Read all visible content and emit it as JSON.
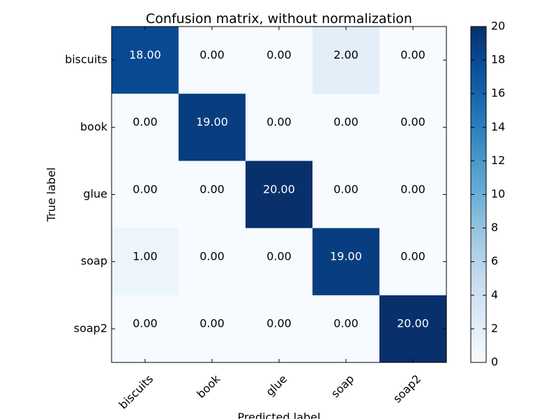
{
  "chart_data": {
    "type": "heatmap",
    "title": "Confusion matrix, without normalization",
    "xlabel": "Predicted label",
    "ylabel": "True label",
    "x_categories": [
      "biscuits",
      "book",
      "glue",
      "soap",
      "soap2"
    ],
    "y_categories": [
      "biscuits",
      "book",
      "glue",
      "soap",
      "soap2"
    ],
    "values": [
      [
        18,
        0,
        0,
        2,
        0
      ],
      [
        0,
        19,
        0,
        0,
        0
      ],
      [
        0,
        0,
        20,
        0,
        0
      ],
      [
        1,
        0,
        0,
        19,
        0
      ],
      [
        0,
        0,
        0,
        0,
        20
      ]
    ],
    "cell_labels": [
      [
        "18.00",
        "0.00",
        "0.00",
        "2.00",
        "0.00"
      ],
      [
        "0.00",
        "19.00",
        "0.00",
        "0.00",
        "0.00"
      ],
      [
        "0.00",
        "0.00",
        "20.00",
        "0.00",
        "0.00"
      ],
      [
        "1.00",
        "0.00",
        "0.00",
        "19.00",
        "0.00"
      ],
      [
        "0.00",
        "0.00",
        "0.00",
        "0.00",
        "20.00"
      ]
    ],
    "value_range": [
      0,
      20
    ],
    "colormap": "Blues",
    "colorbar": {
      "ticks": [
        0,
        2,
        4,
        6,
        8,
        10,
        12,
        14,
        16,
        18,
        20
      ],
      "tick_labels": [
        "0",
        "2",
        "4",
        "6",
        "8",
        "10",
        "12",
        "14",
        "16",
        "18",
        "20"
      ]
    },
    "x_tick_rotation": 45,
    "grid": false
  }
}
